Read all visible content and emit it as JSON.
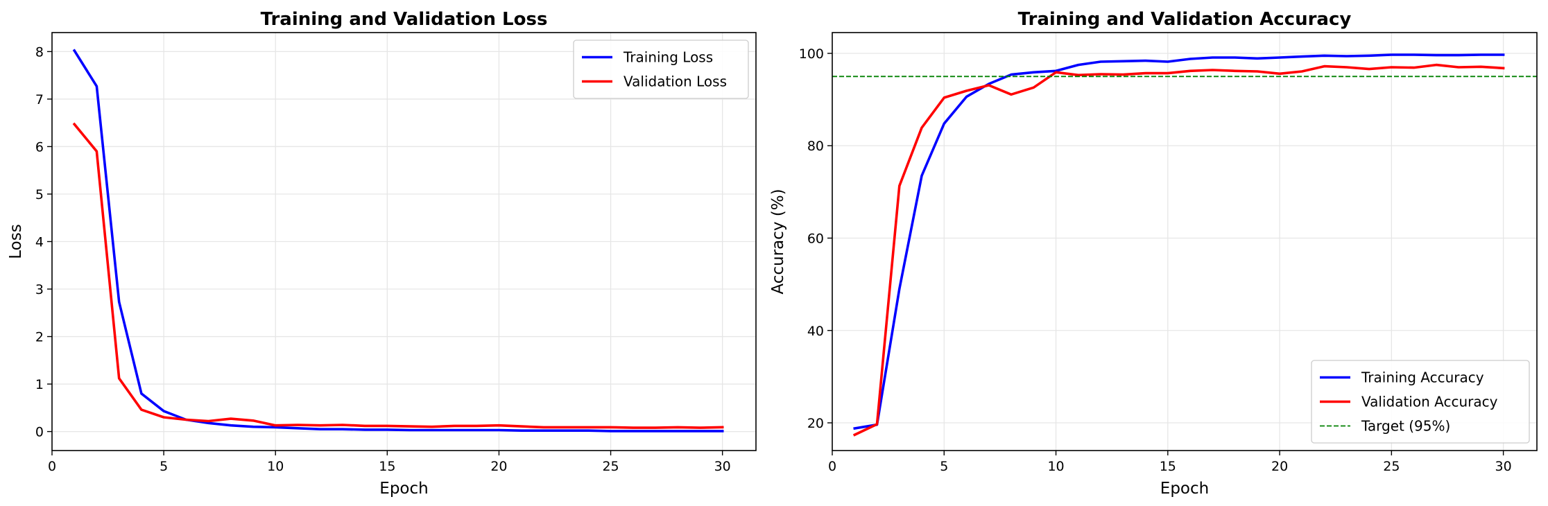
{
  "chart_data": [
    {
      "type": "line",
      "title": "Training and Validation Loss",
      "xlabel": "Epoch",
      "ylabel": "Loss",
      "xlim": [
        0,
        31.5
      ],
      "ylim": [
        -0.4,
        8.4
      ],
      "xticks": [
        0,
        5,
        10,
        15,
        20,
        25,
        30
      ],
      "yticks": [
        0,
        1,
        2,
        3,
        4,
        5,
        6,
        7,
        8
      ],
      "grid": true,
      "legend_position": "upper right",
      "x": [
        1,
        2,
        3,
        4,
        5,
        6,
        7,
        8,
        9,
        10,
        11,
        12,
        13,
        14,
        15,
        16,
        17,
        18,
        19,
        20,
        21,
        22,
        23,
        24,
        25,
        26,
        27,
        28,
        29,
        30
      ],
      "series": [
        {
          "name": "Training Loss",
          "color": "#0000ff",
          "values": [
            8.02,
            7.27,
            2.73,
            0.8,
            0.43,
            0.25,
            0.18,
            0.13,
            0.1,
            0.09,
            0.07,
            0.05,
            0.05,
            0.04,
            0.04,
            0.03,
            0.03,
            0.03,
            0.03,
            0.03,
            0.02,
            0.02,
            0.02,
            0.02,
            0.01,
            0.01,
            0.01,
            0.01,
            0.01,
            0.01
          ]
        },
        {
          "name": "Validation Loss",
          "color": "#ff0000",
          "values": [
            6.47,
            5.9,
            1.12,
            0.46,
            0.3,
            0.25,
            0.22,
            0.27,
            0.23,
            0.13,
            0.14,
            0.13,
            0.14,
            0.12,
            0.12,
            0.11,
            0.1,
            0.12,
            0.12,
            0.13,
            0.11,
            0.09,
            0.09,
            0.09,
            0.09,
            0.08,
            0.08,
            0.09,
            0.08,
            0.09
          ]
        }
      ]
    },
    {
      "type": "line",
      "title": "Training and Validation Accuracy",
      "xlabel": "Epoch",
      "ylabel": "Accuracy (%)",
      "xlim": [
        0,
        31.5
      ],
      "ylim": [
        14,
        104.5
      ],
      "xticks": [
        0,
        5,
        10,
        15,
        20,
        25,
        30
      ],
      "yticks": [
        20,
        40,
        60,
        80,
        100
      ],
      "grid": true,
      "legend_position": "lower right",
      "x": [
        1,
        2,
        3,
        4,
        5,
        6,
        7,
        8,
        9,
        10,
        11,
        12,
        13,
        14,
        15,
        16,
        17,
        18,
        19,
        20,
        21,
        22,
        23,
        24,
        25,
        26,
        27,
        28,
        29,
        30
      ],
      "series": [
        {
          "name": "Training Accuracy",
          "color": "#0000ff",
          "values": [
            18.8,
            19.6,
            49.0,
            73.5,
            84.8,
            90.6,
            93.4,
            95.4,
            95.9,
            96.2,
            97.5,
            98.2,
            98.3,
            98.4,
            98.2,
            98.8,
            99.1,
            99.1,
            98.9,
            99.1,
            99.3,
            99.5,
            99.4,
            99.5,
            99.7,
            99.7,
            99.6,
            99.6,
            99.7,
            99.7
          ]
        },
        {
          "name": "Validation Accuracy",
          "color": "#ff0000",
          "values": [
            17.4,
            19.7,
            71.3,
            83.9,
            90.4,
            91.9,
            93.1,
            91.1,
            92.6,
            95.9,
            95.3,
            95.5,
            95.4,
            95.7,
            95.7,
            96.2,
            96.4,
            96.2,
            96.1,
            95.6,
            96.1,
            97.2,
            97.0,
            96.6,
            97.0,
            96.9,
            97.5,
            97.0,
            97.1,
            96.8
          ]
        },
        {
          "name": "Target (95%)",
          "color": "#008000",
          "style": "dashed",
          "value": 95
        }
      ]
    }
  ]
}
